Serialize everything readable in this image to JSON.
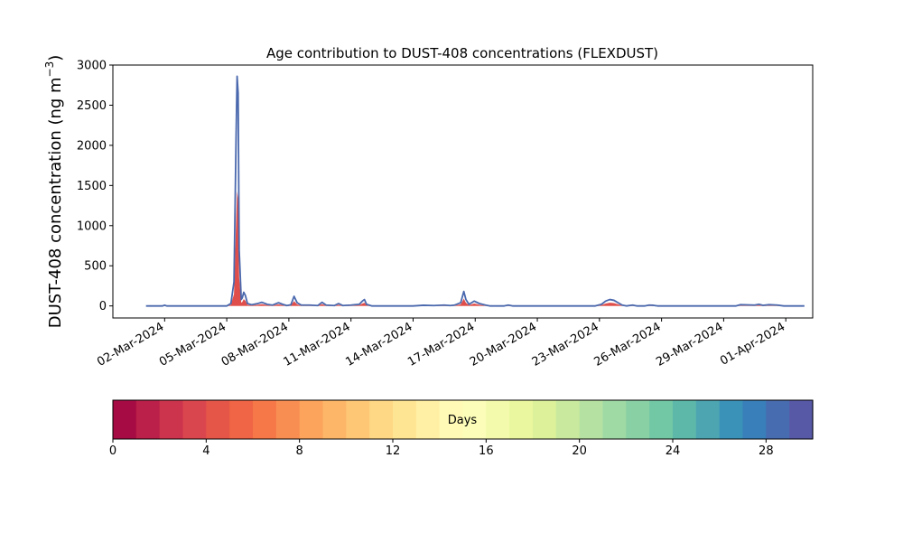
{
  "chart_data": {
    "type": "area",
    "title": "Age contribution to DUST-408 concentrations (FLEXDUST)",
    "ylabel_main": "DUST-408 concentration (ng m",
    "ylabel_sup": "−3",
    "ylabel_close": ")",
    "xlabel": "",
    "ylim": [
      -150,
      3000
    ],
    "yticks": [
      0,
      500,
      1000,
      1500,
      2000,
      2500,
      3000
    ],
    "ytick_labels": [
      "0",
      "500",
      "1000",
      "1500",
      "2000",
      "2500",
      "3000"
    ],
    "xlim_days": [
      -1.5,
      32.3
    ],
    "xticks": [
      {
        "day": 1,
        "label": "02-Mar-2024"
      },
      {
        "day": 4,
        "label": "05-Mar-2024"
      },
      {
        "day": 7,
        "label": "08-Mar-2024"
      },
      {
        "day": 10,
        "label": "11-Mar-2024"
      },
      {
        "day": 13,
        "label": "14-Mar-2024"
      },
      {
        "day": 16,
        "label": "17-Mar-2024"
      },
      {
        "day": 19,
        "label": "20-Mar-2024"
      },
      {
        "day": 22,
        "label": "23-Mar-2024"
      },
      {
        "day": 25,
        "label": "26-Mar-2024"
      },
      {
        "day": 28,
        "label": "29-Mar-2024"
      },
      {
        "day": 31,
        "label": "01-Apr-2024"
      }
    ],
    "grid": false,
    "total_series": {
      "x_unit": "days since 01-Mar-2024",
      "points": [
        [
          0.1,
          0
        ],
        [
          0.9,
          0
        ],
        [
          1.0,
          10
        ],
        [
          1.1,
          0
        ],
        [
          4.0,
          0
        ],
        [
          4.2,
          30
        ],
        [
          4.35,
          300
        ],
        [
          4.45,
          2100
        ],
        [
          4.5,
          2860
        ],
        [
          4.55,
          2650
        ],
        [
          4.6,
          700
        ],
        [
          4.7,
          80
        ],
        [
          4.75,
          100
        ],
        [
          4.82,
          170
        ],
        [
          4.9,
          130
        ],
        [
          5.0,
          30
        ],
        [
          5.2,
          15
        ],
        [
          5.5,
          30
        ],
        [
          5.7,
          45
        ],
        [
          5.95,
          20
        ],
        [
          6.2,
          10
        ],
        [
          6.5,
          40
        ],
        [
          6.7,
          20
        ],
        [
          6.9,
          5
        ],
        [
          7.1,
          15
        ],
        [
          7.25,
          120
        ],
        [
          7.4,
          40
        ],
        [
          7.6,
          10
        ],
        [
          8.0,
          10
        ],
        [
          8.4,
          5
        ],
        [
          8.6,
          45
        ],
        [
          8.8,
          10
        ],
        [
          9.2,
          5
        ],
        [
          9.4,
          30
        ],
        [
          9.6,
          5
        ],
        [
          10.0,
          10
        ],
        [
          10.2,
          15
        ],
        [
          10.4,
          20
        ],
        [
          10.55,
          60
        ],
        [
          10.65,
          80
        ],
        [
          10.75,
          20
        ],
        [
          11.0,
          0
        ],
        [
          13.0,
          0
        ],
        [
          13.5,
          8
        ],
        [
          14.0,
          5
        ],
        [
          14.5,
          10
        ],
        [
          14.8,
          5
        ],
        [
          15.0,
          10
        ],
        [
          15.3,
          40
        ],
        [
          15.45,
          180
        ],
        [
          15.55,
          80
        ],
        [
          15.7,
          20
        ],
        [
          15.95,
          60
        ],
        [
          16.2,
          30
        ],
        [
          16.5,
          10
        ],
        [
          16.7,
          0
        ],
        [
          17.4,
          0
        ],
        [
          17.6,
          10
        ],
        [
          17.8,
          0
        ],
        [
          21.8,
          0
        ],
        [
          22.1,
          20
        ],
        [
          22.3,
          60
        ],
        [
          22.5,
          80
        ],
        [
          22.7,
          70
        ],
        [
          22.9,
          40
        ],
        [
          23.1,
          10
        ],
        [
          23.3,
          0
        ],
        [
          23.6,
          10
        ],
        [
          23.8,
          0
        ],
        [
          24.2,
          0
        ],
        [
          24.4,
          10
        ],
        [
          24.6,
          8
        ],
        [
          24.8,
          0
        ],
        [
          28.6,
          0
        ],
        [
          28.8,
          15
        ],
        [
          29.5,
          10
        ],
        [
          29.7,
          20
        ],
        [
          29.9,
          8
        ],
        [
          30.2,
          15
        ],
        [
          30.6,
          10
        ],
        [
          30.9,
          0
        ],
        [
          31.9,
          0
        ]
      ]
    },
    "age_fill_fraction": [
      {
        "age_days": 4,
        "fraction": 0.5
      },
      {
        "age_days": 8,
        "fraction": 0.25
      }
    ],
    "line_color": "#4a68ad"
  },
  "colorbar": {
    "label": "Days",
    "range": [
      0,
      30
    ],
    "bins": 30,
    "ticks": [
      0,
      4,
      8,
      12,
      16,
      20,
      24,
      28
    ],
    "tick_labels": [
      "0",
      "4",
      "8",
      "12",
      "16",
      "20",
      "24",
      "28"
    ],
    "colormap": "Spectral"
  }
}
